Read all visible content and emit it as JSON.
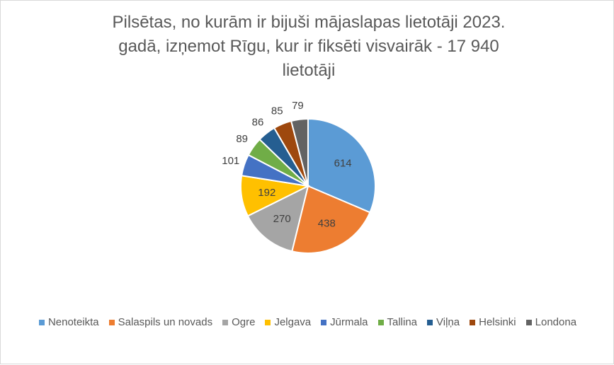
{
  "chart_data": {
    "type": "pie",
    "title": "Pilsētas, no kurām ir bijuši mājaslapas lietotāji 2023. gadā, izņemot Rīgu, kur ir fiksēti visvairāk - 17 940 lietotāji",
    "title_lines": [
      "Pilsētas, no kurām ir bijuši mājaslapas lietotāji 2023.",
      "gadā, izņemot Rīgu, kur ir fiksēti visvairāk - 17 940",
      "lietotāji"
    ],
    "categories": [
      "Nenoteikta",
      "Salaspils un novads",
      "Ogre",
      "Jelgava",
      "Jūrmala",
      "Tallina",
      "Viļņa",
      "Helsinki",
      "Londona"
    ],
    "values": [
      614,
      438,
      270,
      192,
      101,
      89,
      86,
      85,
      79
    ],
    "colors": [
      "#5b9bd5",
      "#ed7d31",
      "#a5a5a5",
      "#ffc000",
      "#4472c4",
      "#70ad47",
      "#255e91",
      "#9e480e",
      "#636363"
    ],
    "legend_position": "bottom"
  }
}
